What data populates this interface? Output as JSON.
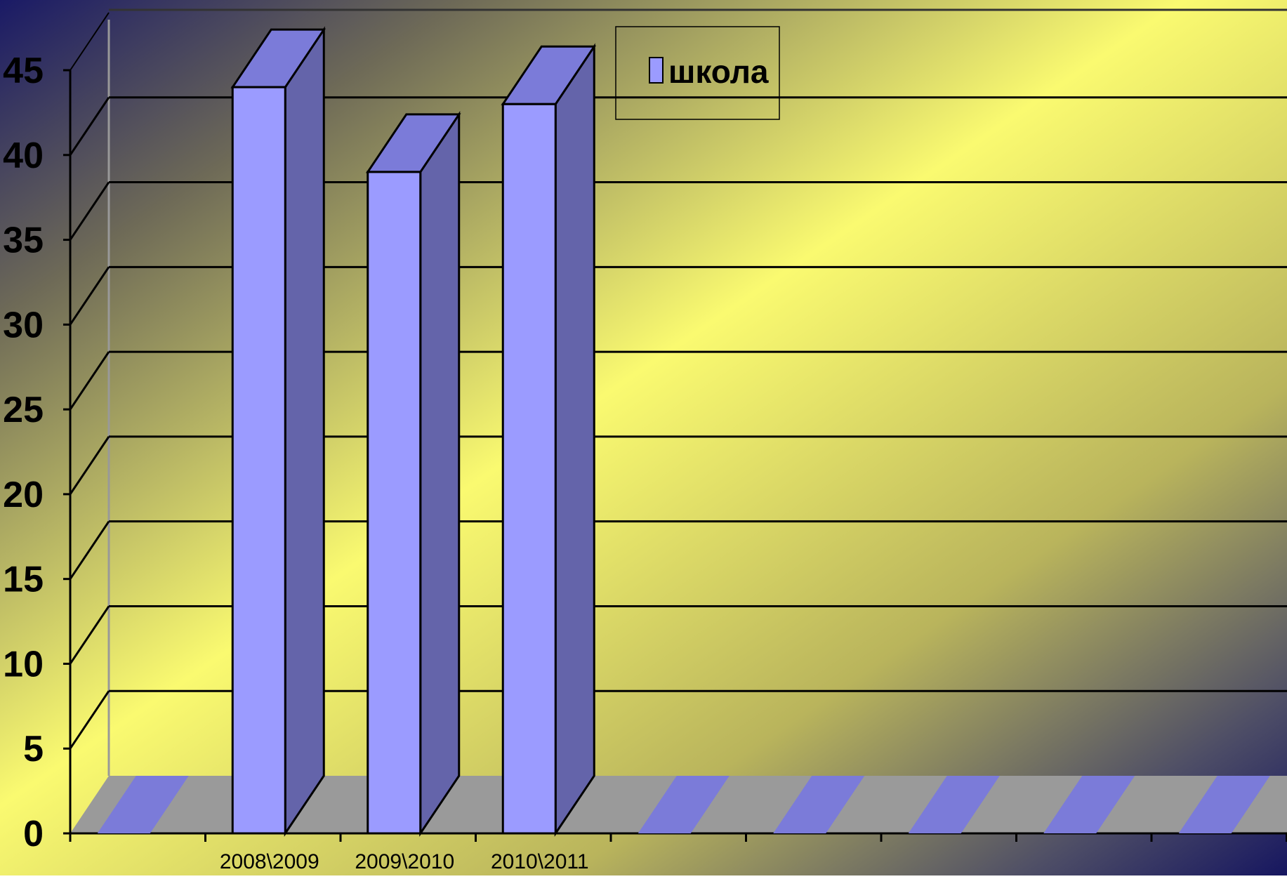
{
  "chart_data": {
    "type": "bar",
    "title": "",
    "xlabel": "",
    "ylabel": "",
    "ylim": [
      0,
      45
    ],
    "ytick_step": 5,
    "y_ticks": [
      "0",
      "5",
      "10",
      "15",
      "20",
      "25",
      "30",
      "35",
      "40",
      "45"
    ],
    "grid": true,
    "legend_position": "top-center",
    "categories": [
      "",
      "2008\\2009",
      "2009\\2010",
      "2010\\2011",
      "",
      "",
      "",
      "",
      "",
      ""
    ],
    "series": [
      {
        "name": "школа",
        "values": [
          0,
          44,
          39,
          43,
          0,
          0,
          0,
          0,
          0,
          0
        ]
      }
    ],
    "colors": {
      "bar_front": "#9b9bff",
      "bar_side": "#6464aa",
      "bar_top": "#7b7bd9",
      "floor": "#9a9a9a",
      "background_dark": "#1a1a66",
      "background_light": "#fafa70"
    }
  }
}
